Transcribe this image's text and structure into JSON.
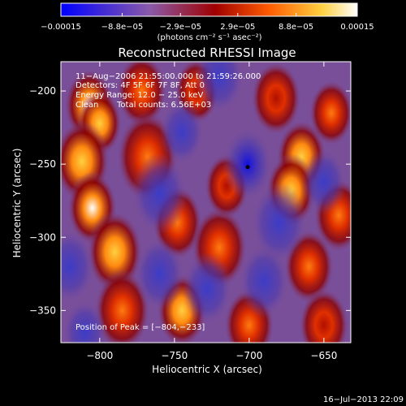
{
  "chart_data": {
    "type": "heatmap",
    "title": "Reconstructed RHESSI Image",
    "xlabel": "Heliocentric X (arcsec)",
    "ylabel": "Heliocentric Y (arcsec)",
    "xlim": [
      -826,
      -632
    ],
    "ylim": [
      -372,
      -180
    ],
    "xticks": [
      -800,
      -750,
      -700,
      -650
    ],
    "xtick_labels": [
      "−800",
      "−750",
      "−700",
      "−650"
    ],
    "yticks": [
      -200,
      -250,
      -300,
      -350
    ],
    "ytick_labels": [
      "−200",
      "−250",
      "−300",
      "−350"
    ],
    "colorbar": {
      "min": -0.00015,
      "max": 0.00015,
      "ticks": [
        -0.00015,
        -8.8e-05,
        -2.9e-05,
        2.9e-05,
        8.8e-05,
        0.00015
      ],
      "tick_labels": [
        "−0.00015",
        "−8.8e−05",
        "−2.9e−05",
        "2.9e−05",
        "8.8e−05",
        "0.00015"
      ],
      "unit_label": "(photons cm⁻² s⁻¹ asec⁻²)",
      "colors": [
        "#0000ff",
        "#8a5aa8",
        "#a00000",
        "#ff5a00",
        "#ffd040",
        "#ffffff"
      ]
    },
    "annotations": {
      "time_range": "11−Aug−2006 21:55:00.000 to 21:59:26.000",
      "detectors": "Detectors: 4F 5F 6F 7F 8F, Att 0",
      "energy_range": "Energy Range: 12.0 − 25.0 keV",
      "clean": "Clean",
      "total_counts": "Total counts: 6.56E+03",
      "peak_position": "Position of Peak = [−804,−233]"
    },
    "peak": {
      "x": -804,
      "y": -233
    },
    "min_marker": {
      "x": -701,
      "y": -252
    },
    "grid": false,
    "blobs": [
      {
        "x": -807,
        "y": -210,
        "amp": 1.0,
        "s": 9
      },
      {
        "x": -800,
        "y": -222,
        "amp": 0.9,
        "s": 8
      },
      {
        "x": -812,
        "y": -248,
        "amp": 0.8,
        "s": 10
      },
      {
        "x": -805,
        "y": -280,
        "amp": 0.95,
        "s": 9
      },
      {
        "x": -790,
        "y": -310,
        "amp": 0.8,
        "s": 10
      },
      {
        "x": -772,
        "y": -200,
        "amp": 0.7,
        "s": 9
      },
      {
        "x": -768,
        "y": -245,
        "amp": 0.75,
        "s": 11
      },
      {
        "x": -748,
        "y": -290,
        "amp": 0.6,
        "s": 9
      },
      {
        "x": -720,
        "y": -307,
        "amp": 0.7,
        "s": 10
      },
      {
        "x": -785,
        "y": -350,
        "amp": 0.6,
        "s": 10
      },
      {
        "x": -745,
        "y": -350,
        "amp": 0.8,
        "s": 9
      },
      {
        "x": -700,
        "y": -360,
        "amp": 0.75,
        "s": 9
      },
      {
        "x": -735,
        "y": -200,
        "amp": 0.5,
        "s": 8
      },
      {
        "x": -682,
        "y": -205,
        "amp": 0.5,
        "s": 9
      },
      {
        "x": -665,
        "y": -245,
        "amp": 0.9,
        "s": 9
      },
      {
        "x": -672,
        "y": -268,
        "amp": 0.85,
        "s": 9
      },
      {
        "x": -645,
        "y": -215,
        "amp": 0.6,
        "s": 8
      },
      {
        "x": -640,
        "y": -285,
        "amp": 0.7,
        "s": 9
      },
      {
        "x": -660,
        "y": -320,
        "amp": 0.75,
        "s": 9
      },
      {
        "x": -650,
        "y": -360,
        "amp": 0.55,
        "s": 9
      },
      {
        "x": -715,
        "y": -265,
        "amp": 0.45,
        "s": 8
      },
      {
        "x": -701,
        "y": -250,
        "amp": -1.0,
        "s": 9
      },
      {
        "x": -745,
        "y": -228,
        "amp": -0.6,
        "s": 8
      },
      {
        "x": -760,
        "y": -270,
        "amp": -0.5,
        "s": 10
      },
      {
        "x": -728,
        "y": -335,
        "amp": -0.6,
        "s": 9
      },
      {
        "x": -760,
        "y": -325,
        "amp": -0.45,
        "s": 9
      },
      {
        "x": -680,
        "y": -290,
        "amp": -0.45,
        "s": 10
      },
      {
        "x": -650,
        "y": -262,
        "amp": -0.45,
        "s": 8
      },
      {
        "x": -720,
        "y": -190,
        "amp": -0.4,
        "s": 9
      },
      {
        "x": -820,
        "y": -320,
        "amp": -0.4,
        "s": 9
      },
      {
        "x": -810,
        "y": -365,
        "amp": -0.4,
        "s": 8
      },
      {
        "x": -690,
        "y": -330,
        "amp": -0.35,
        "s": 9
      }
    ]
  },
  "footer": {
    "timestamp": "16−Jul−2013 22:09"
  }
}
